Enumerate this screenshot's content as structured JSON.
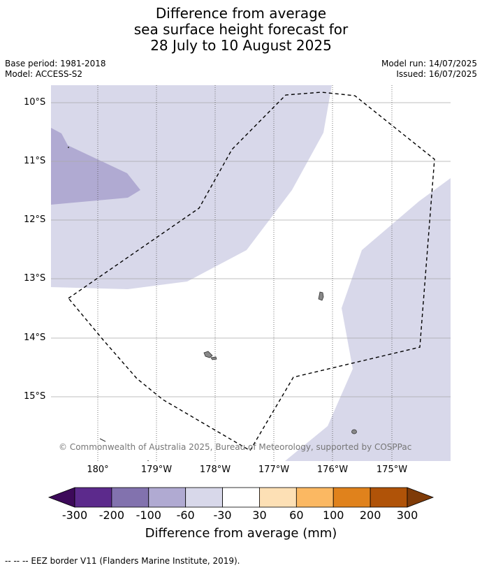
{
  "title": {
    "line1": "Difference from average",
    "line2": "sea surface height forecast for",
    "line3": "28 July to 10 August 2025"
  },
  "meta": {
    "base_period": "Base period: 1981-2018",
    "model": "Model: ACCESS-S2",
    "model_run": "Model run: 14/07/2025",
    "issued": "Issued: 16/07/2025"
  },
  "map": {
    "latitude_labels": [
      "10°S",
      "11°S",
      "12°S",
      "13°S",
      "14°S",
      "15°S"
    ],
    "longitude_labels": [
      "180°",
      "179°W",
      "178°W",
      "177°W",
      "176°W",
      "175°W"
    ],
    "copyright": "© Commonwealth of Australia 2025, Bureau of Meteorology, supported by COSPPac",
    "shading": [
      {
        "category": "-60 to -30",
        "color": "#d8d8ea"
      },
      {
        "category": "-100 to -60",
        "color": "#b0aad2"
      }
    ],
    "land_color": "#7f7f7f",
    "eez_line": "dashed black"
  },
  "colorbar": {
    "title": "Difference from average (mm)",
    "ticks": [
      "-300",
      "-200",
      "-100",
      "-60",
      "-30",
      "30",
      "60",
      "100",
      "200",
      "300"
    ],
    "colors": [
      "#3d0a5a",
      "#5c2a8c",
      "#8272ae",
      "#b0aad2",
      "#d8d8ea",
      "#ffffff",
      "#fde0b5",
      "#fbb862",
      "#e0821c",
      "#b05308",
      "#7f3b08"
    ]
  },
  "footer": "--  --  -- EEZ border V11 (Flanders Marine Institute, 2019)."
}
